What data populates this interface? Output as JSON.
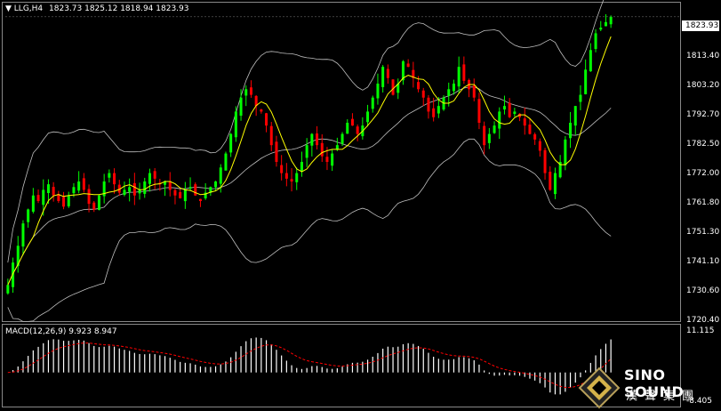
{
  "symbol_header": {
    "symbol": "LLG,H4",
    "ohlc": "1823.73 1825.12 1818.94 1823.93"
  },
  "current_price_tag": "1823.93",
  "price_axis": [
    "1813.40",
    "1803.20",
    "1792.70",
    "1782.50",
    "1772.00",
    "1761.80",
    "1751.30",
    "1741.10",
    "1730.60",
    "1720.40"
  ],
  "macd": {
    "label": "MACD(12,26,9) 9.923 8.947",
    "axis_top": "11.115",
    "axis_bottom": "-8.405"
  },
  "colors": {
    "background": "#000000",
    "bull_candle": "#00ff00",
    "bear_candle": "#ff0000",
    "ma_line": "#ffff00",
    "bollinger": "#bfbfbf",
    "macd_hist": "#ffffff",
    "macd_signal": "#ff0000"
  },
  "logo": {
    "name_en": "SINO SOUND",
    "name_cn": "漢聲集團"
  },
  "chart_data": {
    "type": "candlestick",
    "ylim": [
      1716,
      1828
    ],
    "closes": [
      1728,
      1736,
      1742,
      1750,
      1755,
      1760,
      1758,
      1762,
      1764,
      1760,
      1758,
      1756,
      1760,
      1763,
      1765,
      1762,
      1757,
      1755,
      1760,
      1765,
      1768,
      1764,
      1761,
      1762,
      1763,
      1760,
      1762,
      1765,
      1768,
      1766,
      1764,
      1765,
      1762,
      1760,
      1759,
      1762,
      1763,
      1760,
      1758,
      1761,
      1763,
      1765,
      1770,
      1775,
      1782,
      1790,
      1795,
      1798,
      1796,
      1792,
      1790,
      1785,
      1778,
      1772,
      1768,
      1766,
      1765,
      1768,
      1772,
      1778,
      1782,
      1778,
      1774,
      1772,
      1775,
      1778,
      1782,
      1786,
      1785,
      1782,
      1785,
      1790,
      1795,
      1800,
      1806,
      1802,
      1796,
      1800,
      1808,
      1806,
      1802,
      1798,
      1795,
      1790,
      1788,
      1792,
      1795,
      1798,
      1800,
      1806,
      1801,
      1798,
      1795,
      1786,
      1778,
      1782,
      1785,
      1790,
      1792,
      1788,
      1790,
      1788,
      1785,
      1782,
      1780,
      1776,
      1768,
      1762,
      1768,
      1772,
      1780,
      1786,
      1792,
      1796,
      1805,
      1812,
      1818,
      1820,
      1822,
      1823.93
    ]
  }
}
